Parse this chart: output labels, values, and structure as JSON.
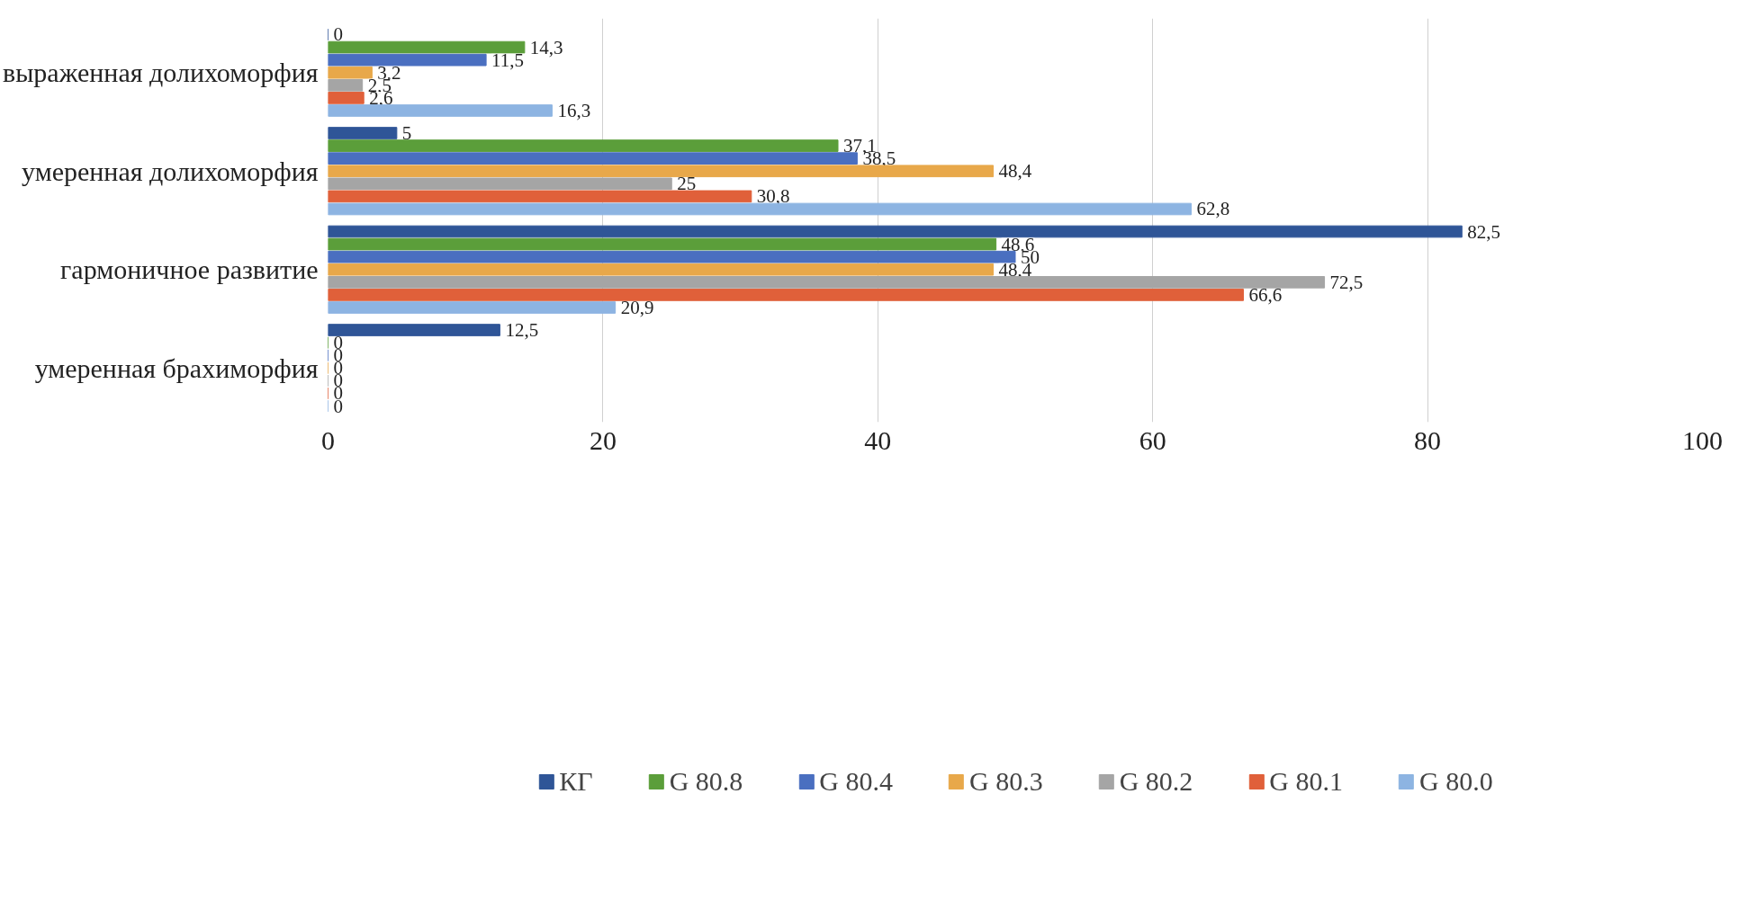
{
  "chart_data": {
    "type": "bar",
    "orientation": "horizontal",
    "categories": [
      "выраженная долихоморфия",
      "умеренная долихоморфия",
      "гармоничное развитие",
      "умеренная брахиморфия"
    ],
    "series": [
      {
        "name": "КГ",
        "color": "#2f5597",
        "values": [
          0,
          5,
          82.5,
          12.5
        ],
        "value_labels": [
          "0",
          "5",
          "82,5",
          "12,5"
        ]
      },
      {
        "name": "G 80.8",
        "color": "#5b9e3a",
        "values": [
          14.3,
          37.1,
          48.6,
          0
        ],
        "value_labels": [
          "14,3",
          "37,1",
          "48,6",
          "0"
        ]
      },
      {
        "name": "G 80.4",
        "color": "#4a6fc0",
        "values": [
          11.5,
          38.5,
          50,
          0
        ],
        "value_labels": [
          "11,5",
          "38,5",
          "50",
          "0"
        ]
      },
      {
        "name": "G 80.3",
        "color": "#e8a84a",
        "values": [
          3.2,
          48.4,
          48.4,
          0
        ],
        "value_labels": [
          "3,2",
          "48,4",
          "48,4",
          "0"
        ]
      },
      {
        "name": "G 80.2",
        "color": "#a5a5a5",
        "values": [
          2.5,
          25,
          72.5,
          0
        ],
        "value_labels": [
          "2,5",
          "25",
          "72,5",
          "0"
        ]
      },
      {
        "name": "G 80.1",
        "color": "#e0603a",
        "values": [
          2.6,
          30.8,
          66.6,
          0
        ],
        "value_labels": [
          "2,6",
          "30,8",
          "66,6",
          "0"
        ]
      },
      {
        "name": "G 80.0",
        "color": "#8db4e2",
        "values": [
          16.3,
          62.8,
          20.9,
          0
        ],
        "value_labels": [
          "16,3",
          "62,8",
          "20,9",
          "0"
        ]
      }
    ],
    "xlim": [
      0,
      100
    ],
    "xticks": [
      0,
      20,
      40,
      60,
      80,
      100
    ],
    "grid": "x",
    "legend": "bottom"
  }
}
